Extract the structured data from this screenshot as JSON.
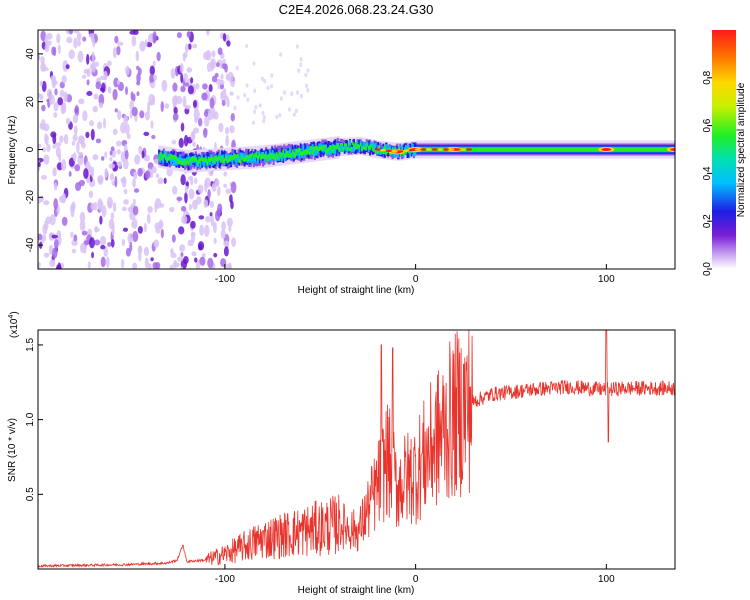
{
  "title": "C2E4.2026.068.23.24.G30",
  "colors": {
    "snr_line": "#e8342c",
    "background": "#ffffff",
    "axis": "#000000"
  },
  "chart_data": [
    {
      "type": "heatmap",
      "name": "spectrogram",
      "xlabel": "Height of straight line (km)",
      "ylabel": "Frequency (Hz)",
      "xlim": [
        -198,
        136
      ],
      "ylim": [
        -50,
        50
      ],
      "xticks": [
        -100,
        0,
        100
      ],
      "xtick_labels": [
        "-100",
        "0",
        "100"
      ],
      "yticks": [
        -40,
        -20,
        0,
        20,
        40
      ],
      "ytick_labels": [
        "-40",
        "-20",
        "0",
        "20",
        "40"
      ],
      "colorbar": {
        "label": "Normalized spectral amplitude",
        "range": [
          0,
          1
        ],
        "ticks": [
          0.0,
          0.2,
          0.4,
          0.6,
          0.8
        ],
        "tick_labels": [
          "0.0",
          "0.2",
          "0.4",
          "0.6",
          "0.8"
        ],
        "colormap": "rainbow"
      },
      "ridge": {
        "description_points_x": [
          -135,
          -120,
          -100,
          -80,
          -60,
          -40,
          -30,
          -20,
          -10,
          0,
          20,
          40,
          60,
          80,
          100,
          136
        ],
        "description_points_freq": [
          -3,
          -5,
          -4,
          -3,
          -1,
          1,
          1.5,
          0,
          -1,
          0,
          0,
          0,
          0,
          0,
          0,
          0
        ],
        "peak_amplitude_x": [
          -10,
          0,
          20,
          100,
          136
        ]
      },
      "noise_region_x": [
        -198,
        -95
      ]
    },
    {
      "type": "line",
      "name": "snr",
      "xlabel": "Height of straight line (km)",
      "ylabel": "SNR (10 * v/v)",
      "yscale_label": "(x10",
      "yscale_exponent": "4",
      "xlim": [
        -198,
        136
      ],
      "ylim": [
        0,
        1.6
      ],
      "xticks": [
        -100,
        0,
        100
      ],
      "xtick_labels": [
        "-100",
        "0",
        "100"
      ],
      "yticks": [
        0.5,
        1.0,
        1.5
      ],
      "ytick_labels": [
        "0.5",
        "1.0",
        "1.5"
      ],
      "series": [
        {
          "name": "SNR",
          "x": [
            -198,
            -150,
            -130,
            -125,
            -122,
            -120,
            -110,
            -100,
            -80,
            -60,
            -40,
            -30,
            -20,
            -15,
            -10,
            0,
            10,
            20,
            30,
            40,
            60,
            80,
            100,
            110,
            136
          ],
          "y": [
            0.02,
            0.03,
            0.04,
            0.06,
            0.16,
            0.05,
            0.06,
            0.1,
            0.2,
            0.25,
            0.3,
            0.25,
            0.55,
            0.75,
            0.55,
            0.65,
            0.85,
            1.02,
            1.12,
            1.17,
            1.2,
            1.22,
            1.2,
            1.21,
            1.21
          ],
          "spikes_x": [
            -122,
            -18,
            -12,
            100,
            101
          ],
          "spikes_y": [
            0.16,
            1.5,
            1.48,
            1.6,
            0.85
          ]
        }
      ]
    }
  ]
}
